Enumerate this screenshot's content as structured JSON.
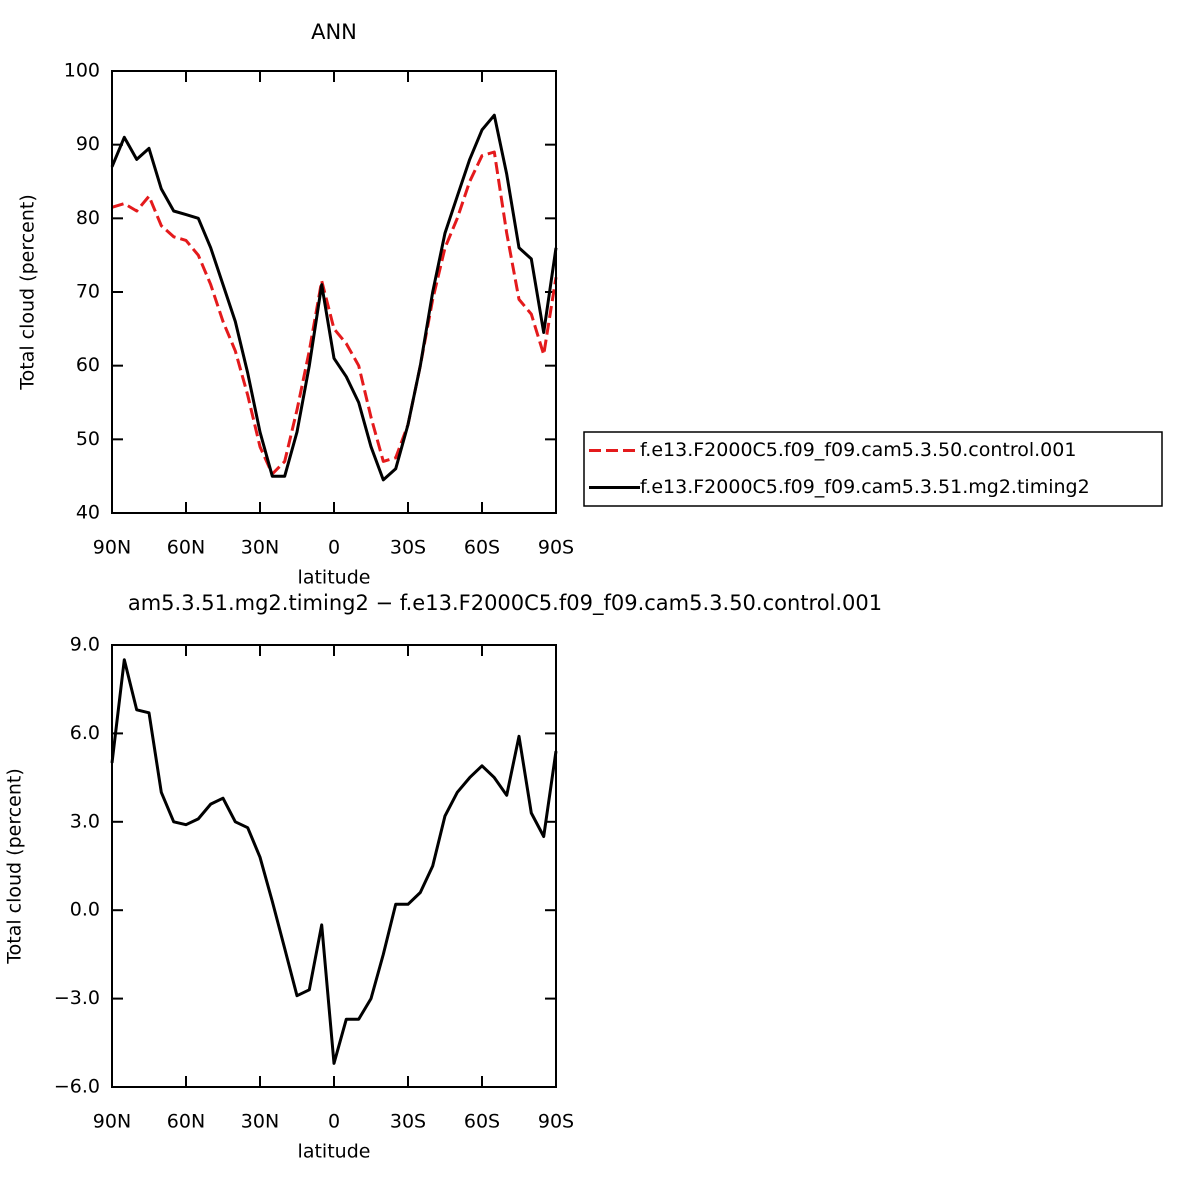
{
  "chart_data": [
    {
      "type": "line",
      "title": "ANN",
      "xlabel": "latitude",
      "ylabel": "Total cloud (percent)",
      "x": [
        90,
        85,
        80,
        75,
        70,
        65,
        60,
        55,
        50,
        45,
        40,
        35,
        30,
        25,
        20,
        15,
        10,
        5,
        0,
        -5,
        -10,
        -15,
        -20,
        -25,
        -30,
        -35,
        -40,
        -45,
        -50,
        -55,
        -60,
        -65,
        -70,
        -75,
        -80,
        -85,
        -90
      ],
      "series": [
        {
          "name": "f.e13.F2000C5.f09_f09.cam5.3.50.control.001",
          "color": "#e41a1c",
          "dashed": true,
          "values": [
            81.5,
            82,
            81,
            83,
            79,
            77.5,
            77,
            75,
            71,
            66,
            62,
            56,
            49,
            45.3,
            47,
            54,
            62,
            71.5,
            65,
            63,
            60,
            53,
            47,
            47.5,
            52,
            60,
            69,
            76,
            80,
            85,
            88.5,
            89,
            78,
            69,
            67,
            61.5,
            72
          ]
        },
        {
          "name": "f.e13.F2000C5.f09_f09.cam5.3.51.mg2.timing2",
          "color": "#000000",
          "dashed": false,
          "values": [
            87,
            91,
            88,
            89.5,
            84,
            81,
            80.5,
            80,
            76,
            71,
            66,
            59,
            51,
            45,
            45,
            51,
            60,
            71,
            61,
            58.5,
            55,
            49,
            44.5,
            46,
            52,
            60,
            70,
            78,
            83,
            88,
            92,
            94,
            86,
            76,
            74.5,
            64.5,
            76
          ]
        }
      ],
      "xlim": [
        90,
        -90
      ],
      "xticks": [
        {
          "value": 90,
          "label": "90N"
        },
        {
          "value": 60,
          "label": "60N"
        },
        {
          "value": 30,
          "label": "30N"
        },
        0,
        {
          "value": -30,
          "label": "30S"
        },
        {
          "value": -60,
          "label": "60S"
        },
        {
          "value": -90,
          "label": "90S"
        }
      ],
      "ylim": [
        40,
        100
      ],
      "yticks": [
        40,
        50,
        60,
        70,
        80,
        90,
        100
      ],
      "legend": "right"
    },
    {
      "type": "line",
      "title": "am5.3.51.mg2.timing2 − f.e13.F2000C5.f09_f09.cam5.3.50.control.001",
      "xlabel": "latitude",
      "ylabel": "Total cloud (percent)",
      "x": [
        90,
        85,
        80,
        75,
        70,
        65,
        60,
        55,
        50,
        45,
        40,
        35,
        30,
        25,
        20,
        15,
        10,
        5,
        0,
        -5,
        -10,
        -15,
        -20,
        -25,
        -30,
        -35,
        -40,
        -45,
        -50,
        -55,
        -60,
        -65,
        -70,
        -75,
        -80,
        -85,
        -90
      ],
      "series": [
        {
          "color": "#000000",
          "dashed": false,
          "values": [
            5.0,
            8.5,
            6.8,
            6.7,
            4.0,
            3.0,
            2.9,
            3.1,
            3.6,
            3.8,
            3.0,
            2.8,
            1.8,
            0.3,
            -1.3,
            -2.9,
            -2.7,
            -0.5,
            -5.2,
            -3.7,
            -3.7,
            -3.0,
            -1.5,
            0.2,
            0.2,
            0.6,
            1.5,
            3.2,
            4.0,
            4.5,
            4.9,
            4.5,
            3.9,
            5.9,
            3.3,
            2.5,
            5.4
          ]
        }
      ],
      "xlim": [
        90,
        -90
      ],
      "xticks": [
        {
          "value": 90,
          "label": "90N"
        },
        {
          "value": 60,
          "label": "60N"
        },
        {
          "value": 30,
          "label": "30N"
        },
        0,
        {
          "value": -30,
          "label": "30S"
        },
        {
          "value": -60,
          "label": "60S"
        },
        {
          "value": -90,
          "label": "90S"
        }
      ],
      "ylim": [
        -6,
        9
      ],
      "yticks": [
        {
          "value": -6,
          "label": "−6.0"
        },
        {
          "value": -3,
          "label": "−3.0"
        },
        {
          "value": 0,
          "label": "0.0"
        },
        {
          "value": 3,
          "label": "3.0"
        },
        {
          "value": 6,
          "label": "6.0"
        },
        {
          "value": 9,
          "label": "9.0"
        }
      ]
    }
  ]
}
